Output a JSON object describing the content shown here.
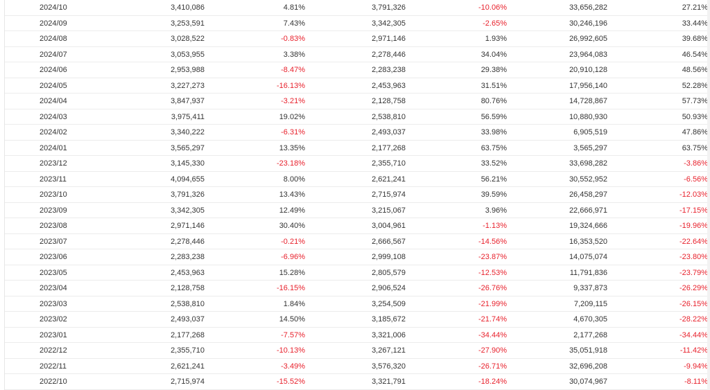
{
  "colors": {
    "negative": "#e8212c",
    "text": "#333333",
    "border": "#ececec"
  },
  "rows": [
    {
      "month": "2024/10",
      "v1": "3,410,086",
      "p1": "4.81%",
      "v2": "3,791,326",
      "p2": "-10.06%",
      "v3": "33,656,282",
      "p3": "27.21%"
    },
    {
      "month": "2024/09",
      "v1": "3,253,591",
      "p1": "7.43%",
      "v2": "3,342,305",
      "p2": "-2.65%",
      "v3": "30,246,196",
      "p3": "33.44%"
    },
    {
      "month": "2024/08",
      "v1": "3,028,522",
      "p1": "-0.83%",
      "v2": "2,971,146",
      "p2": "1.93%",
      "v3": "26,992,605",
      "p3": "39.68%"
    },
    {
      "month": "2024/07",
      "v1": "3,053,955",
      "p1": "3.38%",
      "v2": "2,278,446",
      "p2": "34.04%",
      "v3": "23,964,083",
      "p3": "46.54%"
    },
    {
      "month": "2024/06",
      "v1": "2,953,988",
      "p1": "-8.47%",
      "v2": "2,283,238",
      "p2": "29.38%",
      "v3": "20,910,128",
      "p3": "48.56%"
    },
    {
      "month": "2024/05",
      "v1": "3,227,273",
      "p1": "-16.13%",
      "v2": "2,453,963",
      "p2": "31.51%",
      "v3": "17,956,140",
      "p3": "52.28%"
    },
    {
      "month": "2024/04",
      "v1": "3,847,937",
      "p1": "-3.21%",
      "v2": "2,128,758",
      "p2": "80.76%",
      "v3": "14,728,867",
      "p3": "57.73%"
    },
    {
      "month": "2024/03",
      "v1": "3,975,411",
      "p1": "19.02%",
      "v2": "2,538,810",
      "p2": "56.59%",
      "v3": "10,880,930",
      "p3": "50.93%"
    },
    {
      "month": "2024/02",
      "v1": "3,340,222",
      "p1": "-6.31%",
      "v2": "2,493,037",
      "p2": "33.98%",
      "v3": "6,905,519",
      "p3": "47.86%"
    },
    {
      "month": "2024/01",
      "v1": "3,565,297",
      "p1": "13.35%",
      "v2": "2,177,268",
      "p2": "63.75%",
      "v3": "3,565,297",
      "p3": "63.75%"
    },
    {
      "month": "2023/12",
      "v1": "3,145,330",
      "p1": "-23.18%",
      "v2": "2,355,710",
      "p2": "33.52%",
      "v3": "33,698,282",
      "p3": "-3.86%"
    },
    {
      "month": "2023/11",
      "v1": "4,094,655",
      "p1": "8.00%",
      "v2": "2,621,241",
      "p2": "56.21%",
      "v3": "30,552,952",
      "p3": "-6.56%"
    },
    {
      "month": "2023/10",
      "v1": "3,791,326",
      "p1": "13.43%",
      "v2": "2,715,974",
      "p2": "39.59%",
      "v3": "26,458,297",
      "p3": "-12.03%"
    },
    {
      "month": "2023/09",
      "v1": "3,342,305",
      "p1": "12.49%",
      "v2": "3,215,067",
      "p2": "3.96%",
      "v3": "22,666,971",
      "p3": "-17.15%"
    },
    {
      "month": "2023/08",
      "v1": "2,971,146",
      "p1": "30.40%",
      "v2": "3,004,961",
      "p2": "-1.13%",
      "v3": "19,324,666",
      "p3": "-19.96%"
    },
    {
      "month": "2023/07",
      "v1": "2,278,446",
      "p1": "-0.21%",
      "v2": "2,666,567",
      "p2": "-14.56%",
      "v3": "16,353,520",
      "p3": "-22.64%"
    },
    {
      "month": "2023/06",
      "v1": "2,283,238",
      "p1": "-6.96%",
      "v2": "2,999,108",
      "p2": "-23.87%",
      "v3": "14,075,074",
      "p3": "-23.80%"
    },
    {
      "month": "2023/05",
      "v1": "2,453,963",
      "p1": "15.28%",
      "v2": "2,805,579",
      "p2": "-12.53%",
      "v3": "11,791,836",
      "p3": "-23.79%"
    },
    {
      "month": "2023/04",
      "v1": "2,128,758",
      "p1": "-16.15%",
      "v2": "2,906,524",
      "p2": "-26.76%",
      "v3": "9,337,873",
      "p3": "-26.29%"
    },
    {
      "month": "2023/03",
      "v1": "2,538,810",
      "p1": "1.84%",
      "v2": "3,254,509",
      "p2": "-21.99%",
      "v3": "7,209,115",
      "p3": "-26.15%"
    },
    {
      "month": "2023/02",
      "v1": "2,493,037",
      "p1": "14.50%",
      "v2": "3,185,672",
      "p2": "-21.74%",
      "v3": "4,670,305",
      "p3": "-28.22%"
    },
    {
      "month": "2023/01",
      "v1": "2,177,268",
      "p1": "-7.57%",
      "v2": "3,321,006",
      "p2": "-34.44%",
      "v3": "2,177,268",
      "p3": "-34.44%"
    },
    {
      "month": "2022/12",
      "v1": "2,355,710",
      "p1": "-10.13%",
      "v2": "3,267,121",
      "p2": "-27.90%",
      "v3": "35,051,918",
      "p3": "-11.42%"
    },
    {
      "month": "2022/11",
      "v1": "2,621,241",
      "p1": "-3.49%",
      "v2": "3,576,320",
      "p2": "-26.71%",
      "v3": "32,696,208",
      "p3": "-9.94%"
    },
    {
      "month": "2022/10",
      "v1": "2,715,974",
      "p1": "-15.52%",
      "v2": "3,321,791",
      "p2": "-18.24%",
      "v3": "30,074,967",
      "p3": "-8.11%"
    }
  ]
}
